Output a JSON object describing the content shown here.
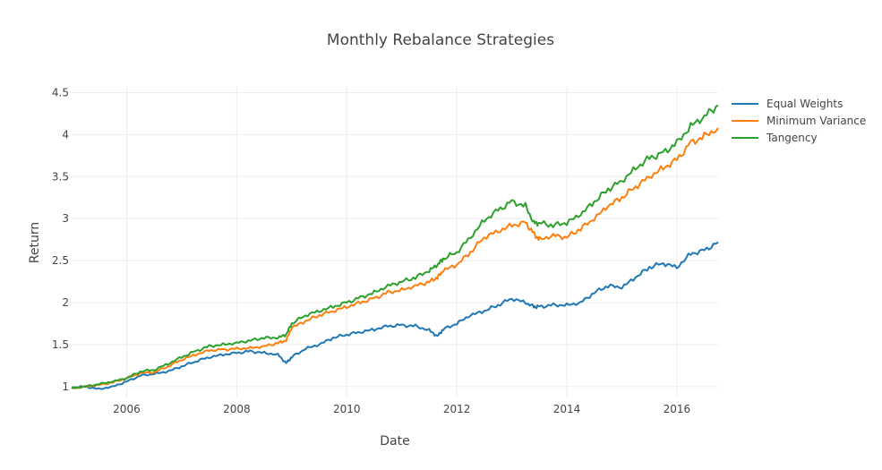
{
  "chart_data": {
    "type": "line",
    "title": "Monthly Rebalance Strategies",
    "xlabel": "Date",
    "ylabel": "Return",
    "xlim": [
      2005.0,
      2016.75
    ],
    "ylim": [
      0.87,
      4.58
    ],
    "grid": true,
    "legend_position": "top-right",
    "x_ticks": [
      "2006",
      "2008",
      "2010",
      "2012",
      "2014",
      "2016"
    ],
    "y_ticks": [
      "1",
      "1.5",
      "2",
      "2.5",
      "3",
      "3.5",
      "4",
      "4.5"
    ],
    "x": [
      2005.0,
      2005.25,
      2005.5,
      2005.75,
      2006.0,
      2006.25,
      2006.5,
      2006.75,
      2007.0,
      2007.25,
      2007.5,
      2007.75,
      2008.0,
      2008.25,
      2008.5,
      2008.75,
      2008.9,
      2009.0,
      2009.25,
      2009.5,
      2009.75,
      2010.0,
      2010.25,
      2010.5,
      2010.75,
      2011.0,
      2011.25,
      2011.5,
      2011.65,
      2011.75,
      2012.0,
      2012.25,
      2012.5,
      2012.75,
      2013.0,
      2013.25,
      2013.4,
      2013.5,
      2013.75,
      2014.0,
      2014.25,
      2014.5,
      2014.75,
      2015.0,
      2015.25,
      2015.5,
      2015.75,
      2016.0,
      2016.25,
      2016.5,
      2016.75
    ],
    "series": [
      {
        "name": "Equal Weights",
        "color": "#1f77b4",
        "values": [
          0.99,
          1.0,
          0.97,
          1.0,
          1.06,
          1.13,
          1.15,
          1.18,
          1.24,
          1.3,
          1.35,
          1.38,
          1.4,
          1.42,
          1.4,
          1.38,
          1.28,
          1.35,
          1.45,
          1.5,
          1.58,
          1.62,
          1.65,
          1.68,
          1.72,
          1.73,
          1.72,
          1.67,
          1.6,
          1.68,
          1.75,
          1.85,
          1.9,
          1.97,
          2.05,
          2.0,
          1.95,
          1.95,
          1.97,
          1.97,
          2.0,
          2.12,
          2.2,
          2.18,
          2.3,
          2.42,
          2.47,
          2.42,
          2.58,
          2.62,
          2.72
        ]
      },
      {
        "name": "Minimum Variance",
        "color": "#ff7f0e",
        "values": [
          0.98,
          1.0,
          1.02,
          1.05,
          1.1,
          1.16,
          1.17,
          1.24,
          1.32,
          1.38,
          1.43,
          1.44,
          1.45,
          1.46,
          1.48,
          1.52,
          1.55,
          1.7,
          1.78,
          1.85,
          1.9,
          1.95,
          2.0,
          2.05,
          2.12,
          2.15,
          2.2,
          2.25,
          2.3,
          2.38,
          2.45,
          2.6,
          2.78,
          2.85,
          2.92,
          2.95,
          2.82,
          2.75,
          2.8,
          2.78,
          2.88,
          3.0,
          3.15,
          3.25,
          3.38,
          3.5,
          3.6,
          3.7,
          3.9,
          3.98,
          4.08
        ]
      },
      {
        "name": "Tangency",
        "color": "#2ca02c",
        "values": [
          0.98,
          1.0,
          1.03,
          1.06,
          1.1,
          1.18,
          1.2,
          1.27,
          1.35,
          1.42,
          1.48,
          1.5,
          1.52,
          1.55,
          1.58,
          1.58,
          1.62,
          1.75,
          1.85,
          1.9,
          1.95,
          2.0,
          2.06,
          2.12,
          2.2,
          2.25,
          2.3,
          2.38,
          2.45,
          2.52,
          2.6,
          2.78,
          2.98,
          3.1,
          3.2,
          3.15,
          2.95,
          2.95,
          2.92,
          2.95,
          3.05,
          3.2,
          3.35,
          3.45,
          3.6,
          3.72,
          3.78,
          3.9,
          4.1,
          4.22,
          4.35
        ]
      }
    ]
  }
}
